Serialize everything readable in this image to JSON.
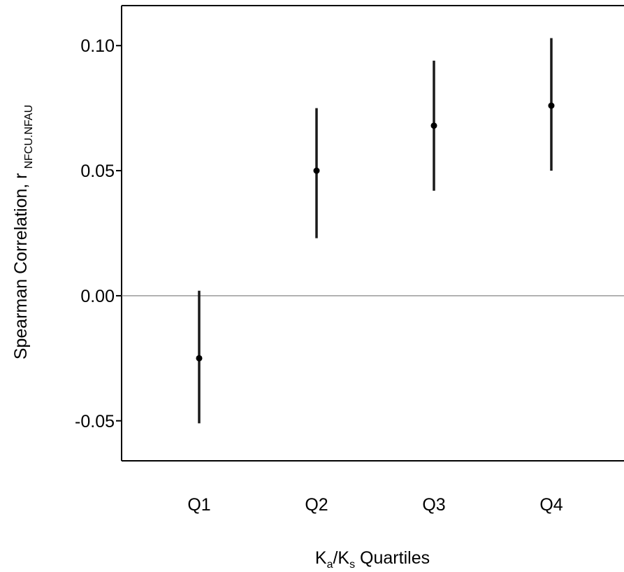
{
  "chart_data": {
    "type": "scatter",
    "title": "",
    "xlabel": {
      "main": "K",
      "sub_a": "a",
      "slash": "/K",
      "sub_s": "s",
      "rest": " Quartiles"
    },
    "ylabel": {
      "main": "Spearman Correlation, r",
      "sub": "NFCU.NFAU"
    },
    "categories": [
      "Q1",
      "Q2",
      "Q3",
      "Q4"
    ],
    "y_ticks": [
      -0.05,
      0.0,
      0.05,
      0.1
    ],
    "y_tick_labels": [
      "-0.05",
      "0.00",
      "0.05",
      "0.10"
    ],
    "ylim": [
      -0.066,
      0.116
    ],
    "reference_line": 0.0,
    "grid": false,
    "series": [
      {
        "values": [
          -0.025,
          0.05,
          0.068,
          0.076
        ],
        "lower": [
          -0.051,
          0.023,
          0.042,
          0.05
        ],
        "upper": [
          0.002,
          0.075,
          0.094,
          0.103
        ]
      }
    ],
    "colors": {
      "marker": "#000000",
      "error_bar": "#1a1a1a",
      "zero_line": "#777777",
      "axis": "#000000"
    }
  }
}
